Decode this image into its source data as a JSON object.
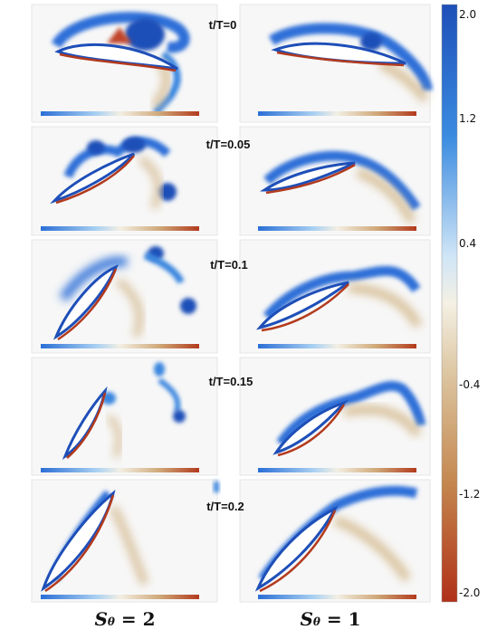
{
  "snapshots": [
    "t/T=0",
    "t/T=0.05",
    "t/T=0.1",
    "t/T=0.15",
    "t/T=0.2"
  ],
  "columns": [
    {
      "symbol": "S",
      "subscript": "θ",
      "value": "= 2"
    },
    {
      "symbol": "S",
      "subscript": "θ",
      "value": "= 1"
    }
  ],
  "colorbar": {
    "ticks": [
      "2.0",
      "1.2",
      "0.4",
      "-0.4",
      "-1.2",
      "-2.0"
    ],
    "colors": {
      "max": "#1f4fb8",
      "mid": "#ffffff",
      "neutral": "#efe6d2",
      "min": "#b5351c"
    }
  }
}
